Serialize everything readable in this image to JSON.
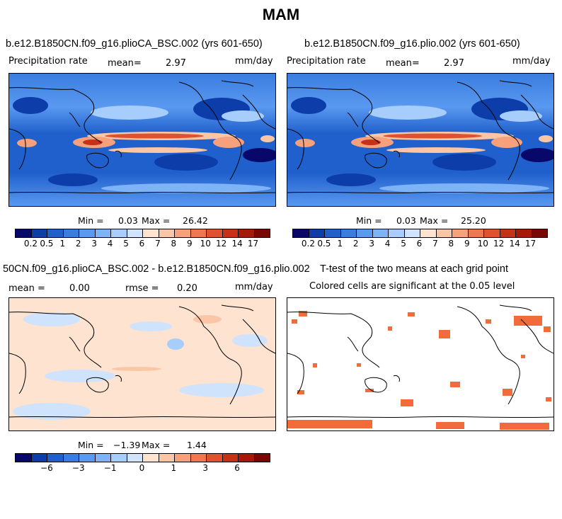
{
  "figure_title": "MAM",
  "colors": {
    "precip_scale": [
      "#08086b",
      "#0c3da8",
      "#2060cc",
      "#3a7de0",
      "#5a99f0",
      "#7fb3f7",
      "#a6cdfb",
      "#cfe3fd",
      "#fde3d0",
      "#fbc6a6",
      "#f7a07c",
      "#f0764f",
      "#e0512f",
      "#c63117",
      "#a5180a",
      "#7a0702"
    ],
    "diff_scale": [
      "#08086b",
      "#0c3da8",
      "#2060cc",
      "#3a7de0",
      "#5a99f0",
      "#7fb3f7",
      "#a6cdfb",
      "#cfe3fd",
      "#fde3d0",
      "#fbc6a6",
      "#f7a07c",
      "#f0764f",
      "#e0512f",
      "#c63117",
      "#a5180a",
      "#7a0702"
    ]
  },
  "chart_data": [
    {
      "type": "heatmap",
      "panel": "top-left",
      "title": "b.e12.B1850CN.f09_g16.plioCA_BSC.002 (yrs 601-650)",
      "variable": "Precipitation rate",
      "mean_label": "mean=",
      "mean": "2.97",
      "units": "mm/day",
      "min_label": "Min =",
      "min": "0.03",
      "max_label": "Max =",
      "max": "26.42",
      "colorbar_levels": [
        "0.2",
        "0.5",
        "1",
        "2",
        "3",
        "4",
        "5",
        "6",
        "7",
        "8",
        "9",
        "10",
        "12",
        "14",
        "17"
      ]
    },
    {
      "type": "heatmap",
      "panel": "top-right",
      "title": "b.e12.B1850CN.f09_g16.plio.002 (yrs 601-650)",
      "variable": "Precipitation rate",
      "mean_label": "mean=",
      "mean": "2.97",
      "units": "mm/day",
      "min_label": "Min =",
      "min": "0.03",
      "max_label": "Max =",
      "max": "25.20",
      "colorbar_levels": [
        "0.2",
        "0.5",
        "1",
        "2",
        "3",
        "4",
        "5",
        "6",
        "7",
        "8",
        "9",
        "10",
        "12",
        "14",
        "17"
      ]
    },
    {
      "type": "heatmap",
      "panel": "bottom-left",
      "title": "50CN.f09_g16.plioCA_BSC.002 - b.e12.B1850CN.f09_g16.plio.002",
      "mean_label": "mean =",
      "mean": "0.00",
      "rmse_label": "rmse =",
      "rmse": "0.20",
      "units": "mm/day",
      "min_label": "Min =",
      "min": "−1.39",
      "max_label": "Max =",
      "max": "1.44",
      "colorbar_labels": [
        "−6",
        "−3",
        "−1",
        "0",
        "1",
        "3",
        "6"
      ]
    },
    {
      "type": "heatmap",
      "panel": "bottom-right",
      "title": "T-test of the two means at each grid point",
      "subtitle": "Colored cells are significant at the 0.05 level"
    }
  ]
}
